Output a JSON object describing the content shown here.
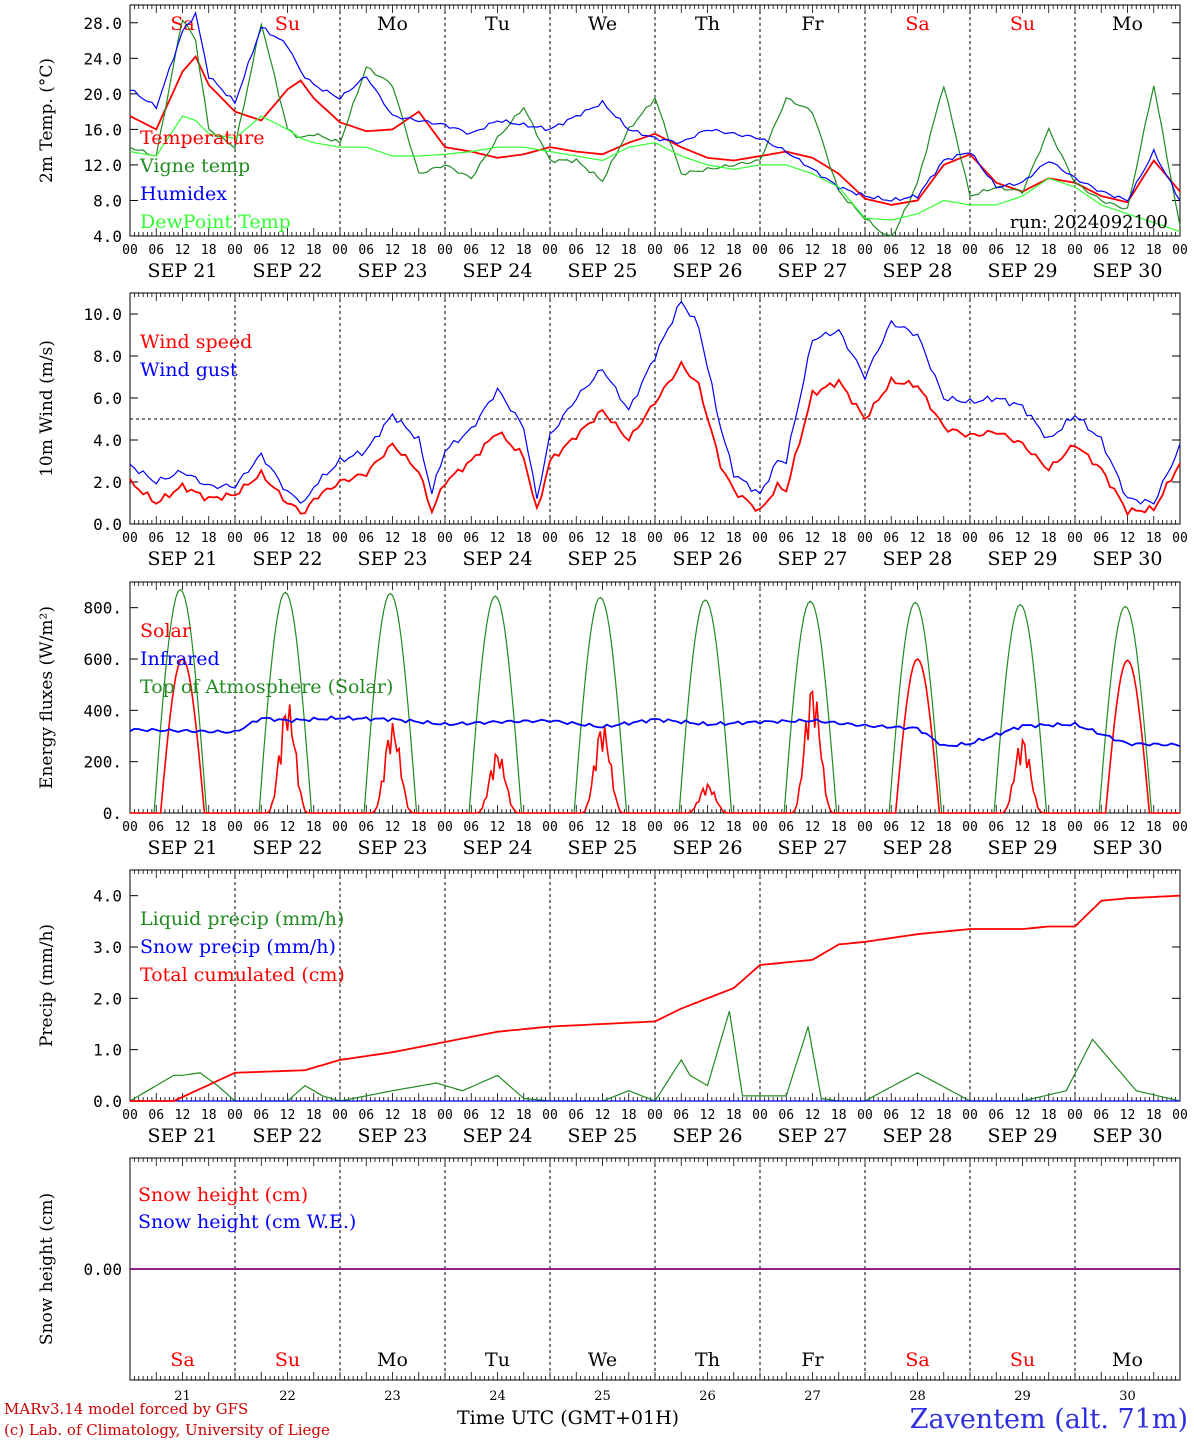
{
  "colors": {
    "red": "#ff0000",
    "green": "#228b22",
    "blue": "#0000ff",
    "lightgreen": "#33ff33",
    "purple": "#800080",
    "axis": "#000000",
    "station": "#2f2fe0",
    "credit": "#cc0000"
  },
  "days": {
    "short": [
      "Sa",
      "Su",
      "Mo",
      "Tu",
      "We",
      "Th",
      "Fr",
      "Sa",
      "Su",
      "Mo"
    ],
    "short_colors": [
      "red",
      "red",
      "black",
      "black",
      "black",
      "black",
      "black",
      "red",
      "red",
      "black"
    ],
    "dates": [
      "SEP 21",
      "SEP 22",
      "SEP 23",
      "SEP 24",
      "SEP 25",
      "SEP 26",
      "SEP 27",
      "SEP 28",
      "SEP 29",
      "SEP 30"
    ],
    "day_numbers": [
      "21",
      "22",
      "23",
      "24",
      "25",
      "26",
      "27",
      "28",
      "29",
      "30"
    ],
    "hour_ticks": [
      "00",
      "06",
      "12",
      "18"
    ],
    "final_hour": "00"
  },
  "footer": {
    "credit_line1": "MARv3.14 model forced by GFS",
    "credit_line2": "(c) Lab. of Climatology, University of Liege",
    "time_axis_label": "Time UTC (GMT+01H)",
    "station": "Zaventem (alt. 71m)"
  },
  "chart_data": [
    {
      "type": "line",
      "title": "",
      "ylabel": "2m Temp. (°C)",
      "ylim": [
        4.0,
        30.0
      ],
      "yticks": [
        "4.0",
        "8.0",
        "12.0",
        "16.0",
        "20.0",
        "24.0",
        "28.0"
      ],
      "annotation": "run: 2024092100",
      "x_unit": "hours since SEP 21 00 UTC",
      "x": [
        0,
        6,
        12,
        15,
        18,
        24,
        30,
        36,
        39,
        42,
        48,
        54,
        60,
        66,
        72,
        78,
        84,
        90,
        96,
        102,
        108,
        114,
        120,
        126,
        132,
        138,
        144,
        150,
        156,
        162,
        168,
        174,
        180,
        186,
        192,
        198,
        204,
        210,
        216,
        222,
        228,
        234,
        240
      ],
      "series": [
        {
          "name": "Temperature",
          "color": "red",
          "values": [
            17.5,
            16.0,
            22.5,
            24.2,
            21.0,
            18.0,
            17.0,
            20.5,
            21.5,
            19.5,
            16.8,
            15.8,
            16.0,
            18.0,
            14.0,
            13.5,
            12.8,
            13.2,
            14.0,
            13.5,
            13.2,
            14.5,
            15.5,
            14.0,
            12.8,
            12.5,
            13.0,
            13.5,
            12.8,
            11.0,
            8.2,
            7.5,
            8.0,
            12.0,
            13.2,
            10.0,
            9.0,
            10.5,
            10.0,
            8.5,
            7.8,
            12.5,
            9.0
          ]
        },
        {
          "name": "Vigne temp",
          "color": "green",
          "values": [
            14.0,
            13.0,
            28.5,
            26.0,
            16.0,
            14.0,
            28.0,
            16.0,
            15.0,
            15.5,
            14.5,
            23.0,
            21.0,
            11.0,
            12.0,
            10.5,
            15.0,
            18.5,
            12.5,
            12.5,
            10.2,
            16.0,
            19.5,
            11.0,
            11.5,
            12.0,
            12.5,
            19.5,
            18.0,
            9.0,
            6.0,
            3.5,
            10.0,
            21.0,
            8.5,
            9.5,
            9.0,
            16.0,
            10.0,
            8.0,
            7.0,
            21.0,
            5.0
          ]
        },
        {
          "name": "Humidex",
          "color": "blue",
          "values": [
            20.5,
            18.5,
            27.0,
            29.0,
            22.0,
            19.0,
            27.5,
            25.5,
            22.5,
            21.0,
            19.5,
            22.0,
            17.5,
            17.0,
            16.5,
            15.5,
            17.0,
            16.5,
            16.0,
            17.5,
            19.0,
            16.0,
            15.0,
            14.5,
            16.0,
            15.5,
            15.0,
            13.5,
            11.5,
            9.5,
            8.5,
            8.0,
            8.5,
            12.5,
            13.5,
            9.5,
            10.0,
            12.5,
            10.5,
            9.0,
            8.0,
            13.5,
            8.0
          ]
        },
        {
          "name": "DewPoint Temp",
          "color": "lightgreen",
          "values": [
            13.5,
            13.0,
            17.5,
            17.0,
            15.5,
            15.0,
            17.5,
            16.0,
            15.0,
            14.5,
            14.0,
            14.0,
            13.0,
            13.0,
            13.2,
            13.5,
            14.0,
            14.0,
            13.5,
            13.0,
            12.5,
            14.0,
            14.5,
            13.0,
            12.0,
            11.5,
            12.0,
            12.0,
            11.0,
            9.5,
            6.0,
            5.8,
            6.5,
            8.0,
            7.5,
            7.5,
            8.5,
            10.5,
            9.5,
            7.5,
            6.5,
            5.5,
            4.5
          ]
        }
      ]
    },
    {
      "type": "line",
      "title": "",
      "ylabel": "10m Wind (m/s)",
      "ylim": [
        0.0,
        11.0
      ],
      "yticks": [
        "0.0",
        "2.0",
        "4.0",
        "6.0",
        "8.0",
        "10.0"
      ],
      "reference_line": 5.0,
      "x_unit": "hours since SEP 21 00 UTC",
      "x": [
        0,
        6,
        12,
        18,
        24,
        30,
        36,
        40,
        42,
        48,
        54,
        60,
        66,
        69,
        72,
        78,
        84,
        90,
        93,
        96,
        102,
        108,
        114,
        120,
        126,
        130,
        135,
        138,
        144,
        148,
        150,
        156,
        162,
        168,
        174,
        180,
        186,
        192,
        198,
        204,
        210,
        216,
        222,
        228,
        234,
        240
      ],
      "series": [
        {
          "name": "Wind speed",
          "color": "red",
          "values": [
            2.0,
            1.0,
            1.8,
            1.2,
            1.4,
            2.4,
            1.0,
            0.5,
            1.2,
            2.0,
            2.4,
            3.8,
            2.5,
            0.6,
            2.0,
            3.0,
            4.4,
            3.2,
            0.6,
            3.0,
            4.2,
            5.4,
            4.0,
            5.8,
            7.6,
            6.6,
            2.8,
            1.6,
            0.6,
            1.8,
            1.6,
            6.2,
            6.8,
            5.0,
            6.8,
            6.6,
            4.6,
            4.2,
            4.4,
            3.8,
            2.6,
            3.8,
            2.6,
            0.6,
            0.7,
            2.9
          ]
        },
        {
          "name": "Wind gust",
          "color": "blue",
          "values": [
            2.8,
            2.0,
            2.5,
            1.8,
            1.8,
            3.3,
            1.5,
            1.0,
            1.8,
            3.0,
            3.5,
            5.2,
            4.0,
            1.5,
            3.5,
            4.5,
            6.4,
            4.6,
            1.2,
            4.2,
            6.0,
            7.4,
            5.4,
            8.0,
            10.6,
            9.4,
            4.6,
            2.4,
            1.4,
            3.0,
            3.0,
            8.8,
            9.2,
            7.0,
            9.6,
            9.0,
            6.0,
            5.8,
            6.0,
            5.6,
            4.0,
            5.2,
            4.0,
            1.2,
            1.0,
            3.7
          ]
        }
      ]
    },
    {
      "type": "line",
      "title": "",
      "ylabel": "Energy fluxes (W/m²)",
      "ylim": [
        0,
        900
      ],
      "yticks": [
        "0.",
        "200.",
        "400.",
        "600.",
        "800."
      ],
      "x_unit": "hours of each day (UTC)",
      "series": [
        {
          "name": "Solar",
          "color": "red",
          "daily_peak_w_m2": [
            600,
            440,
            355,
            245,
            355,
            115,
            510,
            600,
            300,
            595
          ]
        },
        {
          "name": "Infrared",
          "color": "blue",
          "x": [
            0,
            24,
            30,
            36,
            48,
            60,
            72,
            84,
            96,
            108,
            120,
            132,
            144,
            156,
            168,
            180,
            186,
            192,
            204,
            216,
            228,
            240
          ],
          "values": [
            325,
            315,
            370,
            360,
            370,
            365,
            345,
            355,
            360,
            335,
            365,
            345,
            355,
            360,
            340,
            330,
            260,
            270,
            340,
            345,
            270,
            265
          ]
        },
        {
          "name": "Top of Atmosphere (Solar)",
          "color": "green",
          "daily_peak_w_m2": [
            870,
            860,
            855,
            845,
            840,
            830,
            825,
            820,
            812,
            805
          ]
        }
      ]
    },
    {
      "type": "line",
      "title": "",
      "ylabel": "Precip (mm/h)",
      "ylim": [
        0.0,
        4.5
      ],
      "yticks": [
        "0.0",
        "1.0",
        "2.0",
        "3.0",
        "4.0"
      ],
      "x_unit": "hours since SEP 21 00 UTC",
      "series": [
        {
          "name": "Liquid precip (mm/h)",
          "color": "green",
          "x": [
            0,
            10,
            12,
            16,
            20,
            24,
            36,
            40,
            44,
            48,
            60,
            70,
            76,
            84,
            90,
            96,
            108,
            114,
            120,
            126,
            128,
            132,
            137,
            140,
            150,
            155,
            158,
            162,
            168,
            180,
            192,
            204,
            214,
            220,
            230,
            240
          ],
          "values": [
            0,
            0.5,
            0.5,
            0.55,
            0.3,
            0,
            0,
            0.3,
            0.1,
            0,
            0.2,
            0.35,
            0.2,
            0.5,
            0.05,
            0,
            0,
            0.2,
            0,
            0.8,
            0.5,
            0.3,
            1.75,
            0.1,
            0.1,
            1.45,
            0.05,
            0,
            0,
            0.55,
            0,
            0,
            0.2,
            1.2,
            0.2,
            0
          ]
        },
        {
          "name": "Snow precip (mm/h)",
          "color": "blue",
          "x": [
            0,
            240
          ],
          "values": [
            0,
            0
          ]
        },
        {
          "name": "Total cumulated (cm)",
          "color": "red",
          "x": [
            0,
            10,
            24,
            40,
            48,
            60,
            72,
            84,
            96,
            108,
            120,
            126,
            132,
            138,
            144,
            150,
            156,
            162,
            168,
            180,
            192,
            204,
            210,
            216,
            222,
            228,
            240
          ],
          "values": [
            0,
            0,
            0.55,
            0.6,
            0.8,
            0.95,
            1.15,
            1.35,
            1.45,
            1.5,
            1.55,
            1.8,
            2.0,
            2.2,
            2.65,
            2.7,
            2.75,
            3.05,
            3.1,
            3.25,
            3.35,
            3.35,
            3.4,
            3.4,
            3.9,
            3.95,
            4.0
          ]
        }
      ]
    },
    {
      "type": "line",
      "title": "",
      "ylabel": "Snow height (cm)",
      "ylim": [
        -1.0,
        1.0
      ],
      "yticks": [
        "0.00"
      ],
      "x_unit": "hours since SEP 21 00 UTC",
      "x": [
        0,
        240
      ],
      "series": [
        {
          "name": "Snow height (cm)",
          "color": "red",
          "values": [
            0,
            0
          ]
        },
        {
          "name": "Snow height (cm W.E.)",
          "color": "blue",
          "values": [
            0,
            0
          ]
        }
      ]
    }
  ]
}
